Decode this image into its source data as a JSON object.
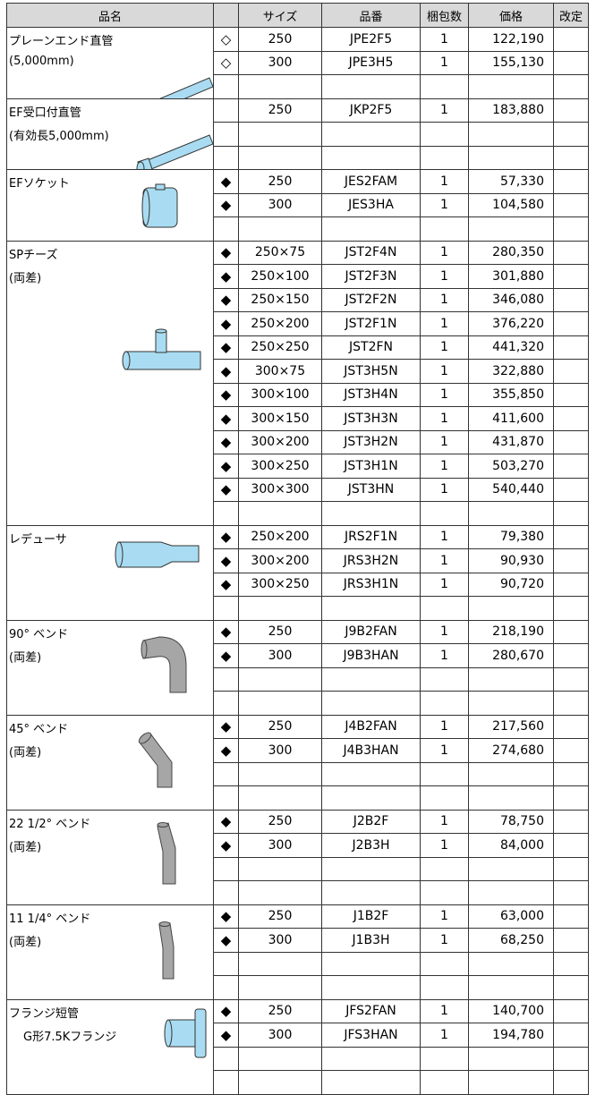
{
  "header": [
    "品名",
    "サイズ",
    "品番",
    "梱包数",
    "価格",
    "改定"
  ],
  "groups": [
    {
      "name": "プレーンエンド直管",
      "note": "(5,000mm)",
      "rows": [
        {
          "mark": "◇",
          "size": "250",
          "code": "JPE2F5",
          "qty": 1,
          "price": "122,190"
        },
        {
          "mark": "◇",
          "size": "300",
          "code": "JPE3H5",
          "qty": 1,
          "price": "155,130"
        }
      ]
    },
    {
      "name": "EF受口付直管",
      "note": "(有効長5,000mm)",
      "rows": [
        {
          "size": "250",
          "code": "JKP2F5",
          "qty": 1,
          "price": "183,880"
        }
      ]
    },
    {
      "name": "EFソケット",
      "rows": [
        {
          "mark": "◆",
          "size": "250",
          "code": "JES2FAM",
          "qty": 1,
          "price": "57,330"
        },
        {
          "mark": "◆",
          "size": "300",
          "code": "JES3HA",
          "qty": 1,
          "price": "104,580"
        }
      ]
    },
    {
      "name": "SPチーズ",
      "note": "(両差)",
      "rows": [
        {
          "mark": "◆",
          "size": "250×75",
          "code": "JST2F4N",
          "qty": 1,
          "price": "280,350"
        },
        {
          "mark": "◆",
          "size": "250×100",
          "code": "JST2F3N",
          "qty": 1,
          "price": "301,880"
        },
        {
          "mark": "◆",
          "size": "250×150",
          "code": "JST2F2N",
          "qty": 1,
          "price": "346,080"
        },
        {
          "mark": "◆",
          "size": "250×200",
          "code": "JST2F1N",
          "qty": 1,
          "price": "376,220"
        },
        {
          "mark": "◆",
          "size": "250×250",
          "code": "JST2FN",
          "qty": 1,
          "price": "441,320"
        },
        {
          "mark": "◆",
          "size": "300×75",
          "code": "JST3H5N",
          "qty": 1,
          "price": "322,880"
        },
        {
          "mark": "◆",
          "size": "300×100",
          "code": "JST3H4N",
          "qty": 1,
          "price": "355,850"
        },
        {
          "mark": "◆",
          "size": "300×150",
          "code": "JST3H3N",
          "qty": 1,
          "price": "411,600"
        },
        {
          "mark": "◆",
          "size": "300×200",
          "code": "JST3H2N",
          "qty": 1,
          "price": "431,870"
        },
        {
          "mark": "◆",
          "size": "300×250",
          "code": "JST3H1N",
          "qty": 1,
          "price": "503,270"
        },
        {
          "mark": "◆",
          "size": "300×300",
          "code": "JST3HN",
          "qty": 1,
          "price": "540,440"
        }
      ]
    },
    {
      "name": "レデューサ",
      "rows": [
        {
          "mark": "◆",
          "size": "250×200",
          "code": "JRS2F1N",
          "qty": 1,
          "price": "79,380"
        },
        {
          "mark": "◆",
          "size": "300×200",
          "code": "JRS3H2N",
          "qty": 1,
          "price": "90,930"
        },
        {
          "mark": "◆",
          "size": "300×250",
          "code": "JRS3H1N",
          "qty": 1,
          "price": "90,720"
        }
      ]
    },
    {
      "name": "90° ベンド",
      "note": "(両差)",
      "rows": [
        {
          "mark": "◆",
          "size": "250",
          "code": "J9B2FAN",
          "qty": 1,
          "price": "218,190"
        },
        {
          "mark": "◆",
          "size": "300",
          "code": "J9B3HAN",
          "qty": 1,
          "price": "280,670"
        }
      ]
    },
    {
      "name": "45° ベンド",
      "note": "(両差)",
      "rows": [
        {
          "mark": "◆",
          "size": "250",
          "code": "J4B2FAN",
          "qty": 1,
          "price": "217,560"
        },
        {
          "mark": "◆",
          "size": "300",
          "code": "J4B3HAN",
          "qty": 1,
          "price": "274,680"
        }
      ]
    },
    {
      "name": "22 1/2° ベンド",
      "note": "(両差)",
      "rows": [
        {
          "mark": "◆",
          "size": "250",
          "code": "J2B2F",
          "qty": 1,
          "price": "78,750"
        },
        {
          "mark": "◆",
          "size": "300",
          "code": "J2B3H",
          "qty": 1,
          "price": "84,000"
        }
      ]
    },
    {
      "name": "11 1/4° ベンド",
      "note": "(両差)",
      "rows": [
        {
          "mark": "◆",
          "size": "250",
          "code": "J1B2F",
          "qty": 1,
          "price": "63,000"
        },
        {
          "mark": "◆",
          "size": "300",
          "code": "J1B3H",
          "qty": 1,
          "price": "68,250"
        }
      ]
    },
    {
      "name": "フランジ短管",
      "note": "G形7.5Kフランジ",
      "rows": [
        {
          "mark": "◆",
          "size": "250",
          "code": "JFS2FAN",
          "qty": 1,
          "price": "140,700"
        },
        {
          "mark": "◆",
          "size": "300",
          "code": "JFS3HAN",
          "qty": 1,
          "price": "194,780"
        }
      ]
    }
  ]
}
